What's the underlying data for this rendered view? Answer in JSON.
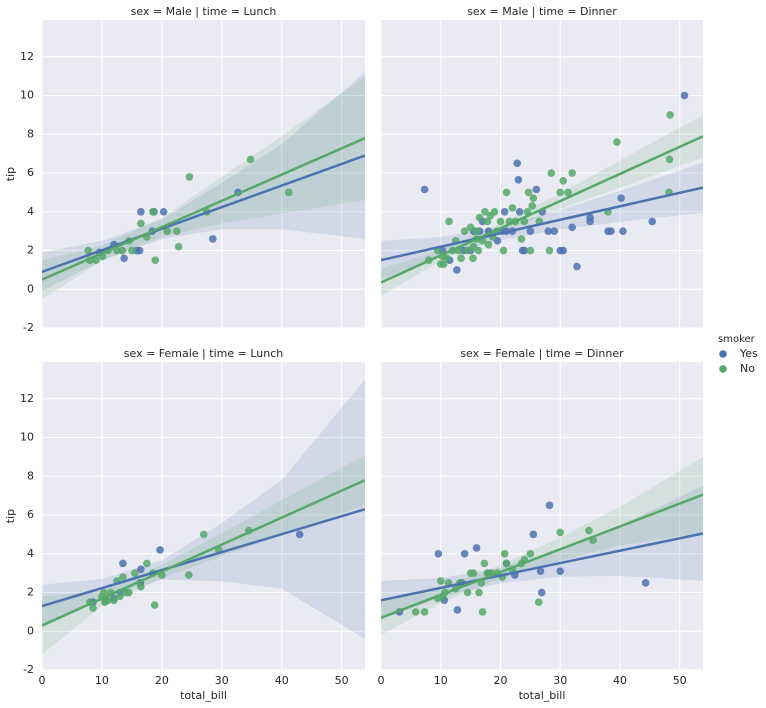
{
  "legend_title": "smoker",
  "chart_data": [
    {
      "type": "scatter",
      "title": "sex = Male | time = Lunch",
      "ylabel": "tip",
      "xlim": [
        0,
        53.9
      ],
      "ylim": [
        -2,
        13.9
      ],
      "xticks": [
        0,
        10,
        20,
        30,
        40,
        50
      ],
      "yticks": [
        -2,
        0,
        2,
        4,
        6,
        8,
        10,
        12
      ],
      "grid": true,
      "series": [
        {
          "name": "Yes",
          "color": "#4c72b0",
          "x": [
            16.5,
            18.7,
            20.3,
            32.7,
            28.5,
            12.0,
            13.7,
            15.8,
            16.3,
            18.4,
            9.6
          ],
          "values": [
            4.0,
            4.0,
            4.0,
            5.0,
            2.6,
            2.3,
            1.6,
            2.0,
            2.0,
            3.0,
            1.9
          ],
          "fit_x": [
            0,
            53.9
          ],
          "fit": [
            0.9,
            6.9
          ],
          "ci_x": [
            0,
            10,
            20,
            30,
            40,
            53.9
          ],
          "ci_lower": [
            -0.1,
            1.5,
            2.6,
            3.1,
            3.1,
            2.6
          ],
          "ci_upper": [
            1.9,
            2.5,
            3.6,
            5.5,
            7.5,
            11.2
          ]
        },
        {
          "name": "No",
          "color": "#55a868",
          "x": [
            7.7,
            8.0,
            9.0,
            10.1,
            11.0,
            12.5,
            13.4,
            14.5,
            16.5,
            17.5,
            18.5,
            18.9,
            20.9,
            22.5,
            22.8,
            24.6,
            34.8,
            41.2,
            27.5,
            15.0
          ],
          "values": [
            2.0,
            1.5,
            1.5,
            1.7,
            2.0,
            2.0,
            2.0,
            2.5,
            3.4,
            2.7,
            4.0,
            1.5,
            3.0,
            3.0,
            2.2,
            5.8,
            6.7,
            5.0,
            4.0,
            2.0
          ],
          "fit_x": [
            0,
            53.9
          ],
          "fit": [
            0.5,
            7.8
          ],
          "ci_x": [
            0,
            10,
            20,
            30,
            40,
            53.9
          ],
          "ci_lower": [
            -0.5,
            1.45,
            2.7,
            3.4,
            3.9,
            4.6
          ],
          "ci_upper": [
            1.5,
            2.25,
            3.7,
            5.8,
            7.9,
            11.0
          ]
        }
      ]
    },
    {
      "type": "scatter",
      "title": "sex = Male | time = Dinner",
      "xlim": [
        0,
        53.9
      ],
      "ylim": [
        -2,
        13.9
      ],
      "xticks": [
        0,
        10,
        20,
        30,
        40,
        50
      ],
      "yticks": [
        -2,
        0,
        2,
        4,
        6,
        8,
        10,
        12
      ],
      "grid": true,
      "series": [
        {
          "name": "Yes",
          "color": "#4c72b0",
          "x": [
            7.3,
            10.3,
            12.7,
            13.8,
            15.0,
            15.5,
            16.5,
            17.0,
            18.0,
            19.5,
            20.3,
            21.0,
            22.0,
            22.8,
            23.0,
            23.2,
            23.7,
            24.0,
            25.0,
            26.0,
            27.0,
            28.0,
            29.0,
            30.0,
            30.5,
            32.0,
            32.8,
            35.0,
            35.0,
            38.0,
            38.5,
            40.2,
            40.5,
            45.4,
            50.8,
            11.5,
            20.7
          ],
          "values": [
            5.15,
            2.0,
            1.0,
            2.0,
            2.0,
            3.0,
            3.0,
            3.5,
            3.0,
            2.5,
            3.0,
            3.0,
            3.0,
            6.5,
            5.65,
            4.0,
            2.0,
            2.0,
            3.0,
            5.15,
            4.0,
            3.0,
            3.0,
            2.0,
            2.0,
            3.2,
            1.17,
            3.5,
            3.7,
            3.0,
            3.0,
            4.7,
            3.0,
            3.5,
            10.0,
            1.5,
            4.0
          ],
          "fit_x": [
            0,
            53.9
          ],
          "fit": [
            1.5,
            5.25
          ],
          "ci_x": [
            0,
            10,
            20,
            30,
            40,
            53.9
          ],
          "ci_lower": [
            0.5,
            1.7,
            2.54,
            3.09,
            3.48,
            3.95
          ],
          "ci_upper": [
            2.5,
            2.7,
            3.24,
            4.09,
            5.08,
            6.55
          ]
        },
        {
          "name": "No",
          "color": "#55a868",
          "x": [
            8.0,
            9.5,
            10.0,
            10.3,
            10.5,
            11.0,
            11.4,
            12.0,
            12.5,
            13.0,
            13.4,
            14.0,
            14.5,
            15.0,
            15.4,
            16.0,
            16.3,
            16.5,
            17.0,
            17.4,
            17.8,
            18.0,
            18.3,
            18.7,
            19.0,
            19.4,
            20.0,
            20.5,
            21.0,
            21.5,
            22.0,
            22.5,
            23.5,
            24.0,
            24.5,
            25.3,
            25.5,
            26.5,
            28.2,
            28.5,
            30.0,
            30.5,
            31.3,
            32.0,
            38.0,
            39.5,
            48.2,
            48.3,
            48.4,
            24.7,
            25.0,
            16.0,
            15.5
          ],
          "values": [
            1.5,
            2.0,
            1.3,
            1.7,
            1.3,
            1.6,
            3.5,
            2.0,
            2.5,
            2.0,
            1.6,
            3.0,
            2.0,
            3.2,
            1.6,
            3.0,
            2.0,
            3.7,
            2.5,
            4.0,
            3.5,
            2.3,
            3.8,
            2.7,
            4.0,
            3.0,
            3.5,
            2.0,
            5.0,
            3.5,
            4.2,
            3.5,
            2.6,
            3.5,
            4.0,
            4.3,
            4.7,
            3.5,
            2.0,
            6.0,
            5.0,
            5.6,
            5.0,
            6.0,
            4.0,
            7.6,
            5.0,
            6.7,
            9.0,
            5.0,
            2.0,
            2.6,
            2.2
          ],
          "fit_x": [
            0,
            53.9
          ],
          "fit": [
            0.35,
            7.9
          ],
          "ci_x": [
            0,
            10,
            20,
            30,
            40,
            53.9
          ],
          "ci_lower": [
            -0.35,
            1.45,
            2.9,
            4.15,
            5.25,
            6.8
          ],
          "ci_upper": [
            1.05,
            2.05,
            3.4,
            4.95,
            6.65,
            9.0
          ]
        }
      ]
    },
    {
      "type": "scatter",
      "title": "sex = Female | time = Lunch",
      "xlabel": "total_bill",
      "ylabel": "tip",
      "xlim": [
        0,
        53.9
      ],
      "ylim": [
        -2,
        13.9
      ],
      "xticks": [
        0,
        10,
        20,
        30,
        40,
        50
      ],
      "yticks": [
        -2,
        0,
        2,
        4,
        6,
        8,
        10,
        12
      ],
      "grid": true,
      "series": [
        {
          "name": "Yes",
          "color": "#4c72b0",
          "x": [
            13.5,
            16.5,
            19.7,
            43.0,
            8.5,
            10.6,
            12.0,
            13.0,
            16.4
          ],
          "values": [
            3.5,
            3.2,
            4.2,
            5.0,
            1.5,
            1.6,
            1.7,
            2.0,
            2.5
          ],
          "fit_x": [
            0,
            53.9
          ],
          "fit": [
            1.3,
            6.3
          ],
          "ci_x": [
            0,
            10,
            20,
            30,
            40,
            53.9
          ],
          "ci_lower": [
            0.2,
            1.7,
            2.66,
            2.58,
            2.2,
            -0.4
          ],
          "ci_upper": [
            2.4,
            2.7,
            3.66,
            5.58,
            7.8,
            13.0
          ]
        },
        {
          "name": "No",
          "color": "#55a868",
          "x": [
            8.0,
            8.5,
            10.0,
            10.5,
            11.0,
            11.5,
            12.0,
            12.5,
            13.0,
            13.5,
            14.5,
            15.5,
            16.5,
            17.5,
            18.5,
            18.8,
            20.0,
            24.5,
            27.0,
            29.5,
            34.5,
            14.0,
            10.3
          ],
          "values": [
            1.5,
            1.2,
            1.8,
            1.5,
            1.6,
            2.0,
            1.6,
            2.6,
            1.8,
            2.8,
            2.0,
            3.0,
            2.3,
            3.5,
            3.0,
            1.35,
            2.9,
            2.9,
            5.0,
            4.2,
            5.2,
            2.0,
            2.0
          ],
          "fit_x": [
            0,
            53.9
          ],
          "fit": [
            0.3,
            7.8
          ],
          "ci_x": [
            0,
            10,
            20,
            30,
            40,
            53.9
          ],
          "ci_lower": [
            -1.2,
            1.3,
            2.73,
            3.87,
            4.96,
            6.5
          ],
          "ci_upper": [
            1.8,
            2.1,
            3.43,
            5.07,
            6.76,
            9.1
          ]
        }
      ]
    },
    {
      "type": "scatter",
      "title": "sex = Female | time = Dinner",
      "xlabel": "total_bill",
      "xlim": [
        0,
        53.9
      ],
      "ylim": [
        -2,
        13.9
      ],
      "xticks": [
        0,
        10,
        20,
        30,
        40,
        50
      ],
      "yticks": [
        -2,
        0,
        2,
        4,
        6,
        8,
        10,
        12
      ],
      "grid": true,
      "series": [
        {
          "name": "Yes",
          "color": "#4c72b0",
          "x": [
            3.1,
            9.6,
            10.6,
            12.8,
            14.0,
            16.0,
            18.0,
            21.0,
            22.4,
            25.5,
            26.7,
            28.2,
            30.0,
            44.3,
            13.5,
            26.9
          ],
          "values": [
            1.0,
            4.0,
            1.6,
            1.1,
            4.0,
            4.3,
            3.0,
            3.5,
            2.9,
            5.0,
            3.1,
            6.5,
            3.1,
            2.5,
            2.5,
            2.0
          ],
          "fit_x": [
            0,
            53.9
          ],
          "fit": [
            1.6,
            5.05
          ],
          "ci_x": [
            0,
            10,
            20,
            30,
            40,
            53.9
          ],
          "ci_lower": [
            0.6,
            1.74,
            2.48,
            2.82,
            2.86,
            2.6
          ],
          "ci_upper": [
            2.6,
            2.74,
            3.28,
            4.22,
            5.46,
            7.5
          ]
        },
        {
          "name": "No",
          "color": "#55a868",
          "x": [
            5.8,
            7.3,
            10.0,
            10.3,
            10.7,
            11.3,
            12.5,
            13.2,
            14.5,
            15.0,
            15.5,
            16.4,
            16.8,
            17.0,
            17.3,
            17.8,
            18.5,
            19.5,
            20.3,
            20.7,
            21.0,
            22.0,
            23.5,
            24.0,
            25.0,
            26.4,
            30.0,
            34.8,
            35.5,
            9.5
          ],
          "values": [
            1.0,
            1.0,
            2.6,
            1.8,
            2.0,
            2.5,
            2.2,
            2.5,
            2.0,
            3.0,
            3.0,
            2.0,
            2.5,
            1.0,
            3.5,
            3.0,
            3.0,
            3.0,
            2.8,
            4.0,
            3.5,
            3.2,
            3.5,
            3.7,
            4.0,
            1.5,
            5.1,
            5.2,
            4.7,
            1.7
          ],
          "fit_x": [
            0,
            53.9
          ],
          "fit": [
            0.7,
            7.05
          ],
          "ci_x": [
            0,
            10,
            20,
            30,
            40,
            53.9
          ],
          "ci_lower": [
            -0.2,
            1.48,
            2.71,
            3.64,
            4.42,
            5.1
          ],
          "ci_upper": [
            1.6,
            2.28,
            3.41,
            4.84,
            6.42,
            9.0
          ]
        }
      ]
    }
  ]
}
